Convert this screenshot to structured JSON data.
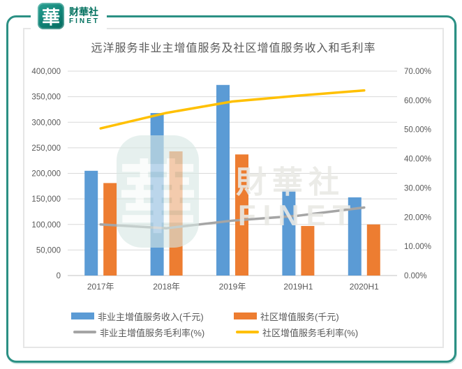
{
  "logo": {
    "icon_glyph": "華",
    "name": "财華社",
    "subname": "FINET",
    "brand_color": "#00705e"
  },
  "watermark": {
    "seal_glyph": "華",
    "text": "財華社",
    "subtext": "FINET"
  },
  "frame_color": "#2b9084",
  "chart_data": {
    "type": "combo-bar-line",
    "title": "远洋服务非业主增值服务及社区增值服务收入和毛利率",
    "categories": [
      "2017年",
      "2018年",
      "2019年",
      "2019H1",
      "2020H1"
    ],
    "series": [
      {
        "name": "非业主增值服务收入(千元)",
        "type": "bar",
        "axis": "left",
        "color": "#5B9BD5",
        "values": [
          205000,
          318000,
          373000,
          168000,
          153000
        ]
      },
      {
        "name": "社区增值服务(千元)",
        "type": "bar",
        "axis": "left",
        "color": "#ED7D31",
        "values": [
          181000,
          243000,
          237000,
          97000,
          100000
        ]
      },
      {
        "name": "非业主增值服务毛利率(%)",
        "type": "line",
        "axis": "right",
        "color": "#A5A5A5",
        "values": [
          17.5,
          16.2,
          18.8,
          20.5,
          23.3
        ]
      },
      {
        "name": "社区增值服务毛利率(%)",
        "type": "line",
        "axis": "right",
        "color": "#FFC000",
        "values": [
          50.4,
          55.7,
          59.6,
          61.6,
          63.4
        ]
      }
    ],
    "left_axis": {
      "min": 0,
      "max": 400000,
      "step": 50000,
      "tick_labels": [
        "0",
        "50,000",
        "100,000",
        "150,000",
        "200,000",
        "250,000",
        "300,000",
        "350,000",
        "400,000"
      ]
    },
    "right_axis": {
      "min": 0,
      "max": 70,
      "step": 10,
      "tick_labels": [
        "0.00%",
        "10.00%",
        "20.00%",
        "30.00%",
        "40.00%",
        "50.00%",
        "60.00%",
        "70.00%"
      ]
    },
    "grid": true,
    "legend_position": "bottom"
  }
}
